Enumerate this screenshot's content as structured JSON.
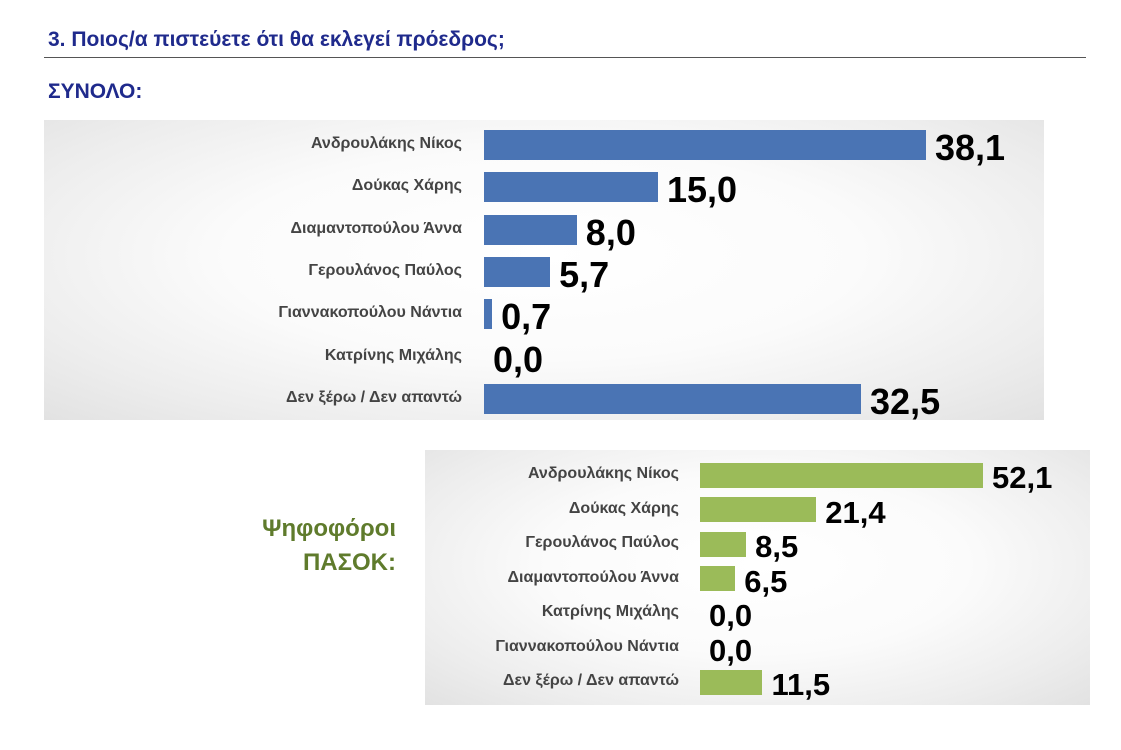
{
  "header": {
    "question": "3. Ποιος/α πιστεύετε ότι θα εκλεγεί πρόεδρος;",
    "total_label": "ΣΥΝΟΛΟ:"
  },
  "colors": {
    "total_bar": "#4a74b4",
    "pasok_bar": "#9bbb59",
    "heading": "#1f2a8c",
    "group_label": "#5f7b2c"
  },
  "chart_data": [
    {
      "type": "bar",
      "orientation": "horizontal",
      "title": "ΣΥΝΟΛΟ:",
      "categories": [
        "Ανδρουλάκης Νίκος",
        "Δούκας Χάρης",
        "Διαμαντοπούλου Άννα",
        "Γερουλάνος Παύλος",
        "Γιαννακοπούλου Νάντια",
        "Κατρίνης Μιχάλης",
        "Δεν ξέρω / Δεν απαντώ"
      ],
      "values": [
        38.1,
        15.0,
        8.0,
        5.7,
        0.7,
        0.0,
        32.5
      ],
      "labels": [
        "38,1",
        "15,0",
        "8,0",
        "5,7",
        "0,7",
        "0,0",
        "32,5"
      ],
      "xlim": [
        0,
        38.1
      ],
      "color": "#4a74b4",
      "grid": false
    },
    {
      "type": "bar",
      "orientation": "horizontal",
      "title": "Ψηφοφόροι ΠΑΣΟΚ:",
      "title_lines": [
        "Ψηφοφόροι",
        "ΠΑΣΟΚ:"
      ],
      "categories": [
        "Ανδρουλάκης Νίκος",
        "Δούκας Χάρης",
        "Γερουλάνος Παύλος",
        "Διαμαντοπούλου Άννα",
        "Κατρίνης Μιχάλης",
        "Γιαννακοπούλου Νάντια",
        "Δεν ξέρω / Δεν απαντώ"
      ],
      "values": [
        52.1,
        21.4,
        8.5,
        6.5,
        0.0,
        0.0,
        11.5
      ],
      "labels": [
        "52,1",
        "21,4",
        "8,5",
        "6,5",
        "0,0",
        "0,0",
        "11,5"
      ],
      "xlim": [
        0,
        52.1
      ],
      "color": "#9bbb59",
      "grid": false
    }
  ]
}
